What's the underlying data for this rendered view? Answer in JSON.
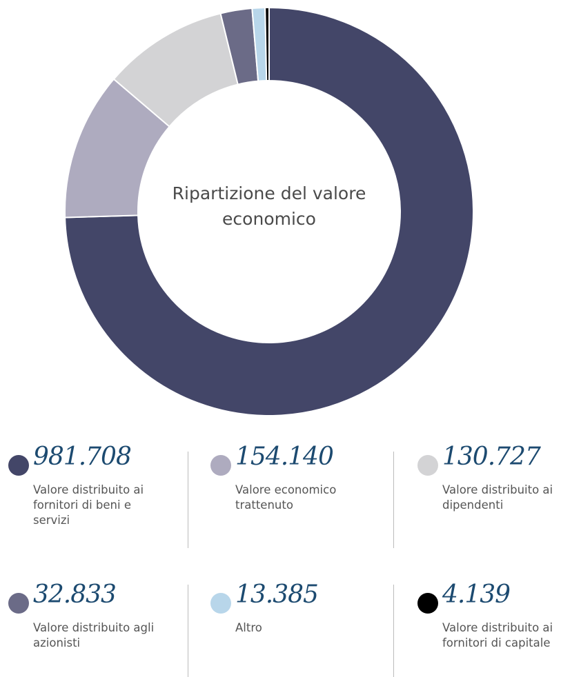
{
  "chart_data": {
    "type": "donut",
    "title": "Ripartizione del valore economico",
    "categories": [
      "Valore distribuito ai fornitori di beni e servizi",
      "Valore economico trattenuto",
      "Valore distribuito ai dipendenti",
      "Valore distribuito agli azionisti",
      "Altro",
      "Valore distribuito ai fornitori di capitale"
    ],
    "values": [
      981708,
      154140,
      130727,
      32833,
      13385,
      4139
    ],
    "value_labels": [
      "981.708",
      "154.140",
      "130.727",
      "32.833",
      "13.385",
      "4.139"
    ],
    "colors": [
      "#434668",
      "#aeabbf",
      "#d3d3d5",
      "#6b6b87",
      "#b8d6ea",
      "#000000"
    ]
  }
}
